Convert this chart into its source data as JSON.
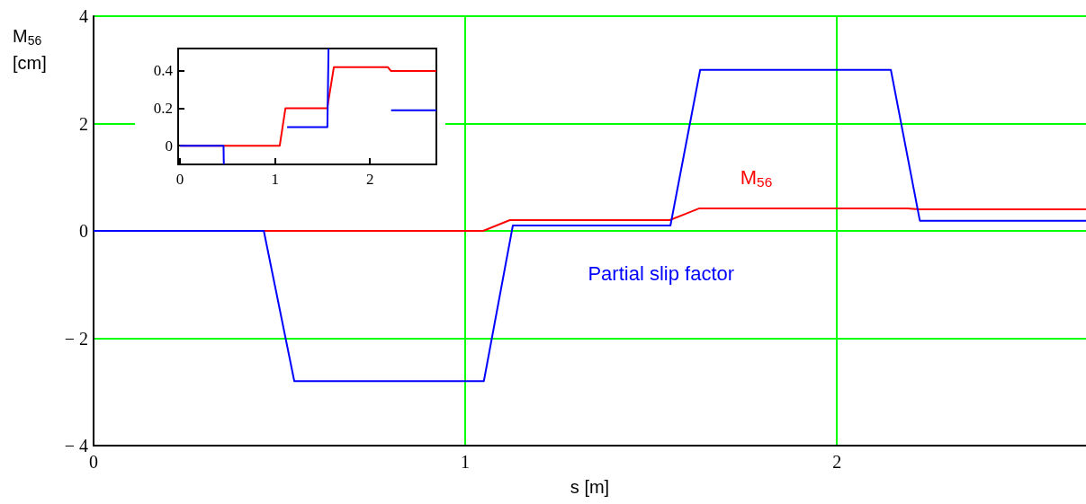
{
  "chart_data": [
    {
      "type": "line",
      "xlabel": "s [m]",
      "ylabel": "M$_{56}$\n[cm]",
      "xlim": [
        0,
        2.67
      ],
      "ylim": [
        -4,
        4
      ],
      "xticks": [
        0,
        1,
        2
      ],
      "yticks": [
        {
          "value": -4,
          "label": "− 4"
        },
        {
          "value": -2,
          "label": "− 2"
        },
        0,
        2,
        4
      ],
      "grid": true,
      "series": [
        {
          "name": "M$_{56}$",
          "color": "#ff0000",
          "x": [
            0,
            1.048,
            1.12,
            1.55,
            1.63,
            2.19,
            2.22,
            2.67
          ],
          "values": [
            0,
            0,
            0.2,
            0.2,
            0.42,
            0.42,
            0.4,
            0.4
          ]
        },
        {
          "name": "Partial slip factor",
          "color": "#0000ff",
          "x": [
            0,
            0.458,
            0.54,
            1.05,
            1.128,
            1.552,
            1.632,
            2.145,
            2.223,
            2.67
          ],
          "values": [
            0,
            0,
            -2.8,
            -2.8,
            0.1,
            0.1,
            3,
            3,
            0.19,
            0.19
          ]
        }
      ]
    },
    {
      "type": "line",
      "xlim": [
        -0.02,
        2.7
      ],
      "ylim": [
        -0.1,
        0.52
      ],
      "xticks": [
        0,
        1,
        2
      ],
      "yticks": [
        0,
        0.2,
        0.4
      ],
      "series": [
        {
          "color": "#ff0000",
          "x": [
            0,
            1.05,
            1.11,
            1.55,
            1.62,
            2.19,
            2.22,
            2.7
          ],
          "values": [
            0,
            0,
            0.2,
            0.2,
            0.42,
            0.42,
            0.4,
            0.4
          ]
        },
        {
          "color": "#0000ff",
          "x": [
            0,
            0.458,
            0.461,
            1.123,
            1.128,
            1.552,
            1.564,
            2.214,
            2.223,
            2.7
          ],
          "values": [
            0,
            0,
            -0.1,
            null,
            0.1,
            0.1,
            0.52,
            null,
            0.19,
            0.19
          ]
        }
      ]
    }
  ]
}
